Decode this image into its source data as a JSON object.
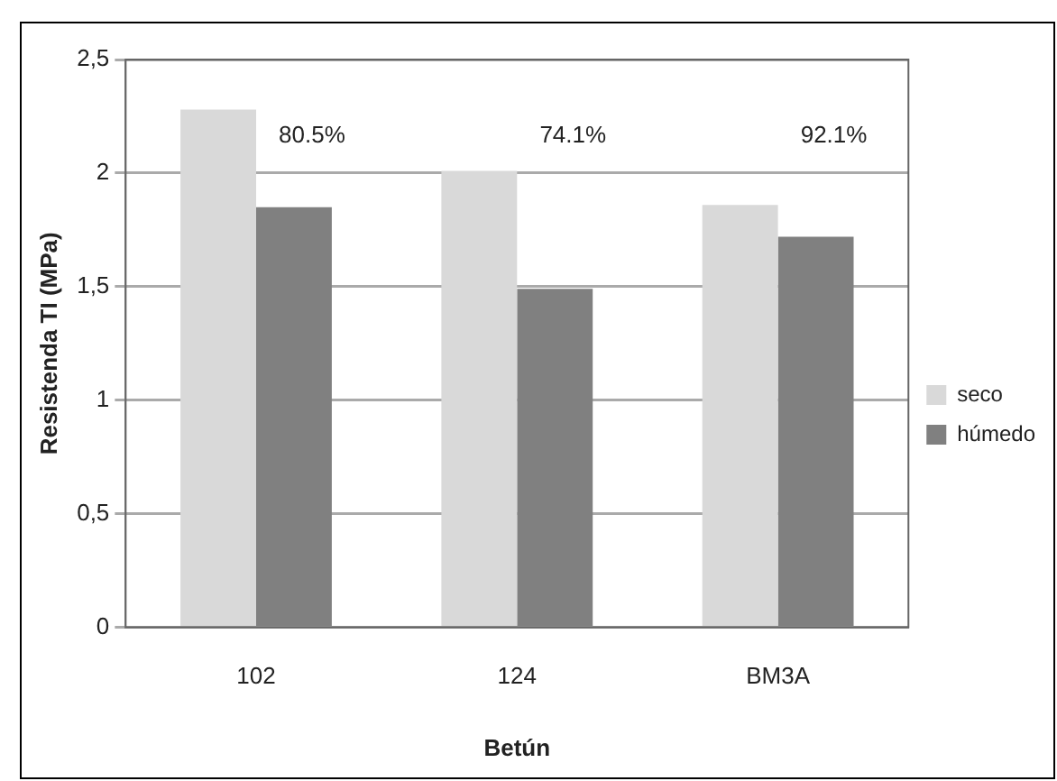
{
  "chart_data": {
    "type": "bar",
    "xlabel": "Betún",
    "ylabel": "Resistenda TI (MPa)",
    "categories": [
      "102",
      "124",
      "BM3A"
    ],
    "series": [
      {
        "name": "seco",
        "color": "#d9d9d9",
        "values": [
          2.28,
          2.01,
          1.86
        ]
      },
      {
        "name": "húmedo",
        "color": "#808080",
        "values": [
          1.85,
          1.49,
          1.72
        ]
      }
    ],
    "ylim": [
      0,
      2.5
    ],
    "yticks": [
      0,
      {
        "value": 0.5,
        "label": "0,5"
      },
      1,
      {
        "value": 1.5,
        "label": "1,5"
      },
      2,
      {
        "value": 2.5,
        "label": "2,5"
      }
    ],
    "grid": "y",
    "legend": "right",
    "annotations": [
      "80.5%",
      "74.1%",
      "92.1%"
    ]
  }
}
